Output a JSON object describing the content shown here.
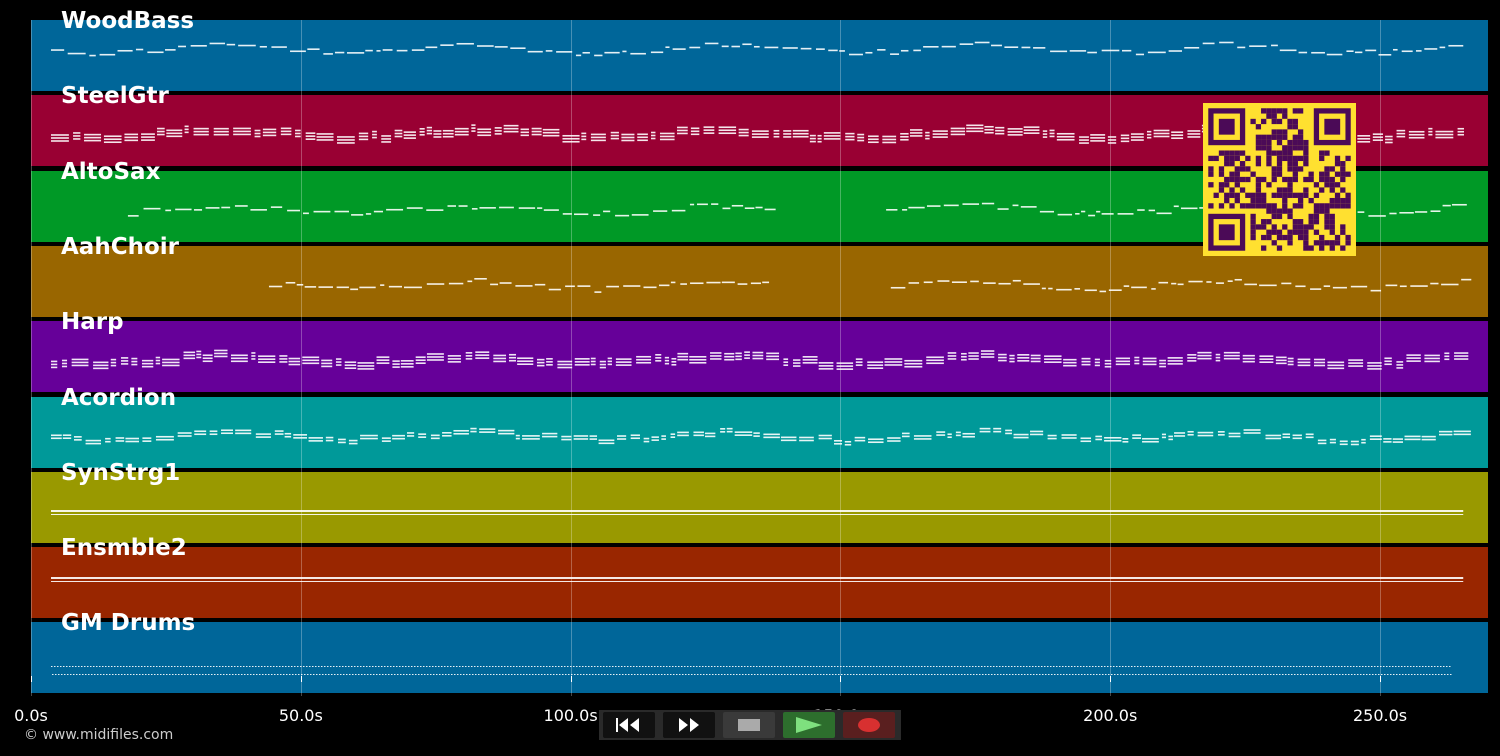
{
  "tracks": [
    {
      "name": "WoodBass",
      "color": "#006699",
      "pattern": "melody",
      "start": 0.0,
      "end": 1.0
    },
    {
      "name": "SteelGtr",
      "color": "#990033",
      "pattern": "chords",
      "start": 0.0,
      "end": 1.0
    },
    {
      "name": "AltoSax",
      "color": "#009926",
      "pattern": "melody-gap",
      "start": 0.06,
      "end": 1.0
    },
    {
      "name": "AahChoir",
      "color": "#996600",
      "pattern": "melody-gap",
      "start": 0.17,
      "end": 1.0
    },
    {
      "name": "Harp",
      "color": "#660099",
      "pattern": "dense",
      "start": 0.0,
      "end": 1.0
    },
    {
      "name": "Acordion",
      "color": "#009999",
      "pattern": "dense-light",
      "start": 0.0,
      "end": 1.0
    },
    {
      "name": "SynStrg1",
      "color": "#999900",
      "pattern": "sustain",
      "start": 0.0,
      "end": 1.0
    },
    {
      "name": "Ensmble2",
      "color": "#992600",
      "pattern": "sustain2",
      "start": 0.0,
      "end": 1.0
    },
    {
      "name": "GM Drums",
      "color": "#006699",
      "pattern": "drums",
      "start": 0.0,
      "end": 1.0
    }
  ],
  "axis": {
    "unit": "s",
    "range": [
      0,
      270
    ],
    "ticks": [
      {
        "value": 0,
        "label": "0.0s"
      },
      {
        "value": 50,
        "label": "50.0s"
      },
      {
        "value": 100,
        "label": "100.0s"
      },
      {
        "value": 150,
        "label": "150.0s"
      },
      {
        "value": 200,
        "label": "200.0s"
      },
      {
        "value": 250,
        "label": "250.0s"
      }
    ]
  },
  "footer": {
    "copyright": "© www.midifiles.com"
  },
  "transport": [
    {
      "name": "rewind-button",
      "icon": "rewind-icon"
    },
    {
      "name": "fast-forward-button",
      "icon": "fast-forward-icon"
    },
    {
      "name": "stop-button",
      "icon": "stop-icon"
    },
    {
      "name": "play-button",
      "icon": "play-icon"
    },
    {
      "name": "record-button",
      "icon": "record-icon"
    }
  ],
  "colors": {
    "background": "#000000",
    "qr": "#FFE030",
    "qr_dark": "#4B0A57",
    "notes": "#FFFFFF"
  }
}
